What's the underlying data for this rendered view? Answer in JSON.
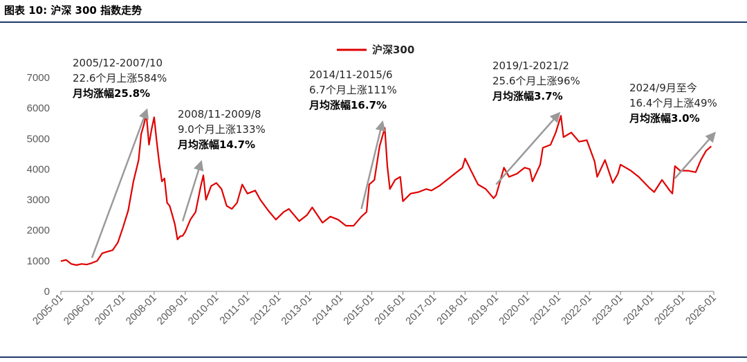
{
  "figure": {
    "caption": "图表 10:  沪深 300 指数走势"
  },
  "chart_data": {
    "type": "line",
    "title": "",
    "xlabel": "",
    "ylabel": "",
    "ylim": [
      0,
      7000
    ],
    "yticks": [
      0,
      1000,
      2000,
      3000,
      4000,
      5000,
      6000,
      7000
    ],
    "xticks": [
      "2005-01",
      "2006-01",
      "2007-01",
      "2008-01",
      "2009-01",
      "2010-01",
      "2011-01",
      "2012-01",
      "2013-01",
      "2014-01",
      "2015-01",
      "2016-01",
      "2017-01",
      "2018-01",
      "2019-01",
      "2020-01",
      "2021-01",
      "2022-01",
      "2023-01",
      "2024-01",
      "2025-01",
      "2026-01"
    ],
    "xrange": [
      "2005-01",
      "2026-01"
    ],
    "grid": false,
    "legend": "top-center",
    "colors": {
      "line": "#e00000",
      "arrow": "#9a9a9a"
    },
    "series": [
      {
        "name": "沪深300",
        "points": [
          [
            "2005-01",
            990
          ],
          [
            "2005-03",
            1030
          ],
          [
            "2005-05",
            900
          ],
          [
            "2005-07",
            860
          ],
          [
            "2005-09",
            900
          ],
          [
            "2005-11",
            880
          ],
          [
            "2006-01",
            930
          ],
          [
            "2006-03",
            1000
          ],
          [
            "2006-05",
            1250
          ],
          [
            "2006-07",
            1300
          ],
          [
            "2006-09",
            1350
          ],
          [
            "2006-11",
            1600
          ],
          [
            "2007-01",
            2100
          ],
          [
            "2007-03",
            2650
          ],
          [
            "2007-05",
            3600
          ],
          [
            "2007-07",
            4300
          ],
          [
            "2007-08",
            5150
          ],
          [
            "2007-09",
            5450
          ],
          [
            "2007-10",
            5800
          ],
          [
            "2007-11",
            4800
          ],
          [
            "2007-12",
            5300
          ],
          [
            "2008-01",
            5700
          ],
          [
            "2008-02",
            4900
          ],
          [
            "2008-03",
            4200
          ],
          [
            "2008-04",
            3600
          ],
          [
            "2008-05",
            3700
          ],
          [
            "2008-06",
            2900
          ],
          [
            "2008-07",
            2800
          ],
          [
            "2008-08",
            2500
          ],
          [
            "2008-09",
            2200
          ],
          [
            "2008-10",
            1700
          ],
          [
            "2008-11",
            1800
          ],
          [
            "2008-12",
            1820
          ],
          [
            "2009-01",
            1950
          ],
          [
            "2009-03",
            2350
          ],
          [
            "2009-05",
            2600
          ],
          [
            "2009-07",
            3450
          ],
          [
            "2009-08",
            3800
          ],
          [
            "2009-09",
            3000
          ],
          [
            "2009-11",
            3450
          ],
          [
            "2010-01",
            3550
          ],
          [
            "2010-03",
            3350
          ],
          [
            "2010-05",
            2800
          ],
          [
            "2010-07",
            2700
          ],
          [
            "2010-09",
            2900
          ],
          [
            "2010-11",
            3500
          ],
          [
            "2011-01",
            3200
          ],
          [
            "2011-04",
            3300
          ],
          [
            "2011-06",
            3000
          ],
          [
            "2011-09",
            2650
          ],
          [
            "2011-12",
            2350
          ],
          [
            "2012-03",
            2600
          ],
          [
            "2012-05",
            2700
          ],
          [
            "2012-09",
            2300
          ],
          [
            "2012-12",
            2500
          ],
          [
            "2013-02",
            2750
          ],
          [
            "2013-06",
            2250
          ],
          [
            "2013-09",
            2450
          ],
          [
            "2013-12",
            2350
          ],
          [
            "2014-03",
            2150
          ],
          [
            "2014-06",
            2150
          ],
          [
            "2014-09",
            2450
          ],
          [
            "2014-11",
            2600
          ],
          [
            "2014-12",
            3500
          ],
          [
            "2015-02",
            3650
          ],
          [
            "2015-04",
            4750
          ],
          [
            "2015-06",
            5350
          ],
          [
            "2015-07",
            4100
          ],
          [
            "2015-08",
            3350
          ],
          [
            "2015-10",
            3650
          ],
          [
            "2015-12",
            3750
          ],
          [
            "2016-01",
            2950
          ],
          [
            "2016-04",
            3200
          ],
          [
            "2016-07",
            3250
          ],
          [
            "2016-10",
            3350
          ],
          [
            "2016-12",
            3300
          ],
          [
            "2017-03",
            3450
          ],
          [
            "2017-06",
            3650
          ],
          [
            "2017-09",
            3850
          ],
          [
            "2017-12",
            4050
          ],
          [
            "2018-01",
            4350
          ],
          [
            "2018-03",
            4000
          ],
          [
            "2018-06",
            3500
          ],
          [
            "2018-09",
            3350
          ],
          [
            "2018-12",
            3050
          ],
          [
            "2019-01",
            3150
          ],
          [
            "2019-04",
            4050
          ],
          [
            "2019-06",
            3750
          ],
          [
            "2019-09",
            3850
          ],
          [
            "2019-12",
            4050
          ],
          [
            "2020-02",
            4000
          ],
          [
            "2020-03",
            3600
          ],
          [
            "2020-06",
            4150
          ],
          [
            "2020-07",
            4700
          ],
          [
            "2020-10",
            4800
          ],
          [
            "2020-12",
            5200
          ],
          [
            "2021-02",
            5750
          ],
          [
            "2021-03",
            5050
          ],
          [
            "2021-06",
            5200
          ],
          [
            "2021-09",
            4900
          ],
          [
            "2021-12",
            4950
          ],
          [
            "2022-03",
            4250
          ],
          [
            "2022-04",
            3750
          ],
          [
            "2022-07",
            4300
          ],
          [
            "2022-10",
            3550
          ],
          [
            "2022-12",
            3850
          ],
          [
            "2023-01",
            4150
          ],
          [
            "2023-05",
            3950
          ],
          [
            "2023-08",
            3750
          ],
          [
            "2023-12",
            3400
          ],
          [
            "2024-02",
            3250
          ],
          [
            "2024-05",
            3650
          ],
          [
            "2024-08",
            3300
          ],
          [
            "2024-09",
            3200
          ],
          [
            "2024-10",
            4100
          ],
          [
            "2024-12",
            3950
          ],
          [
            "2025-03",
            3950
          ],
          [
            "2025-06",
            3900
          ],
          [
            "2025-08",
            4300
          ],
          [
            "2025-10",
            4600
          ],
          [
            "2025-12",
            4750
          ]
        ]
      }
    ],
    "annotations": [
      {
        "lines": [
          "2005/12-2007/10",
          "22.6个月上涨584%"
        ],
        "bold": "月均涨幅25.8%",
        "arrow_from": [
          "2006-01",
          1100
        ],
        "arrow_to": [
          "2007-10",
          5900
        ]
      },
      {
        "lines": [
          "2008/11-2009/8",
          "9.0个月上涨133%"
        ],
        "bold": "月均涨幅14.7%",
        "arrow_from": [
          "2008-12",
          2300
        ],
        "arrow_to": [
          "2009-07",
          4200
        ]
      },
      {
        "lines": [
          "2014/11-2015/6",
          "6.7个月上涨111%"
        ],
        "bold": "月均涨幅16.7%",
        "arrow_from": [
          "2014-09",
          2700
        ],
        "arrow_to": [
          "2015-05",
          5500
        ]
      },
      {
        "lines": [
          "2019/1-2021/2",
          "25.6个月上涨96%"
        ],
        "bold": "月均涨幅3.7%",
        "arrow_from": [
          "2019-01",
          3500
        ],
        "arrow_to": [
          "2021-01",
          5800
        ]
      },
      {
        "lines": [
          "2024/9月至今",
          "16.4个月上涨49%"
        ],
        "bold": "月均涨幅3.0%",
        "arrow_from": [
          "2024-10",
          3700
        ],
        "arrow_to": [
          "2026-01",
          5150
        ]
      }
    ]
  }
}
